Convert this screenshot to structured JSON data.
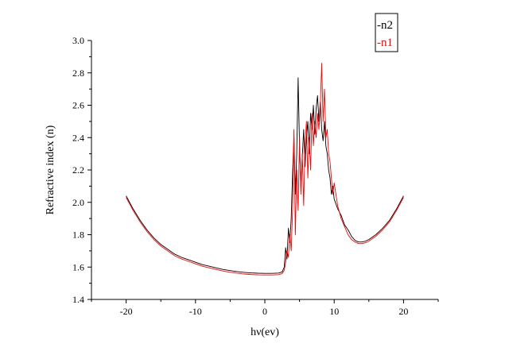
{
  "chart_data": {
    "type": "line",
    "title": "",
    "xlabel": "hν(ev)",
    "ylabel": "Refractive index (n)",
    "xlim": [
      -25,
      25
    ],
    "ylim": [
      1.4,
      3.0
    ],
    "x_ticks": [
      -20,
      -10,
      0,
      10,
      20
    ],
    "y_ticks": [
      1.4,
      1.6,
      1.8,
      2.0,
      2.2,
      2.4,
      2.6,
      2.8,
      3.0
    ],
    "x_tick_labels": [
      "-20",
      "-10",
      "0",
      "10",
      "20"
    ],
    "y_tick_labels": [
      "1.4",
      "1.6",
      "1.8",
      "2.0",
      "2.2",
      "2.4",
      "2.6",
      "2.8",
      "3.0"
    ],
    "grid": false,
    "legend_position": "top-right",
    "series": [
      {
        "name": "-n2",
        "color": "#000000",
        "points": [
          [
            -20,
            2.04
          ],
          [
            -19,
            1.96
          ],
          [
            -18,
            1.89
          ],
          [
            -17,
            1.83
          ],
          [
            -16,
            1.78
          ],
          [
            -15,
            1.74
          ],
          [
            -14,
            1.71
          ],
          [
            -13,
            1.68
          ],
          [
            -12,
            1.66
          ],
          [
            -11,
            1.645
          ],
          [
            -10,
            1.63
          ],
          [
            -9,
            1.615
          ],
          [
            -8,
            1.605
          ],
          [
            -7,
            1.595
          ],
          [
            -6,
            1.585
          ],
          [
            -5,
            1.578
          ],
          [
            -4,
            1.572
          ],
          [
            -3,
            1.567
          ],
          [
            -2,
            1.564
          ],
          [
            -1,
            1.562
          ],
          [
            0,
            1.561
          ],
          [
            1,
            1.561
          ],
          [
            2,
            1.563
          ],
          [
            2.5,
            1.57
          ],
          [
            2.8,
            1.6
          ],
          [
            3.0,
            1.72
          ],
          [
            3.2,
            1.65
          ],
          [
            3.4,
            1.84
          ],
          [
            3.6,
            1.75
          ],
          [
            3.8,
            1.9
          ],
          [
            4.0,
            2.18
          ],
          [
            4.2,
            2.4
          ],
          [
            4.4,
            2.05
          ],
          [
            4.6,
            2.3
          ],
          [
            4.8,
            2.77
          ],
          [
            5.0,
            2.35
          ],
          [
            5.2,
            2.1
          ],
          [
            5.4,
            2.28
          ],
          [
            5.6,
            2.45
          ],
          [
            5.8,
            2.22
          ],
          [
            6.0,
            2.4
          ],
          [
            6.2,
            2.5
          ],
          [
            6.4,
            2.3
          ],
          [
            6.6,
            2.55
          ],
          [
            6.8,
            2.45
          ],
          [
            7.0,
            2.6
          ],
          [
            7.2,
            2.42
          ],
          [
            7.4,
            2.58
          ],
          [
            7.6,
            2.66
          ],
          [
            7.8,
            2.5
          ],
          [
            8.0,
            2.62
          ],
          [
            8.2,
            2.45
          ],
          [
            8.4,
            2.38
          ],
          [
            8.6,
            2.5
          ],
          [
            8.8,
            2.35
          ],
          [
            9.0,
            2.3
          ],
          [
            9.2,
            2.2
          ],
          [
            9.4,
            2.15
          ],
          [
            9.6,
            2.05
          ],
          [
            9.8,
            2.1
          ],
          [
            10.0,
            2.02
          ],
          [
            10.5,
            1.96
          ],
          [
            11.0,
            1.92
          ],
          [
            11.5,
            1.86
          ],
          [
            12.0,
            1.83
          ],
          [
            12.5,
            1.79
          ],
          [
            13.0,
            1.765
          ],
          [
            13.5,
            1.755
          ],
          [
            14.0,
            1.755
          ],
          [
            14.5,
            1.76
          ],
          [
            15.0,
            1.77
          ],
          [
            16,
            1.8
          ],
          [
            17,
            1.84
          ],
          [
            18,
            1.89
          ],
          [
            19,
            1.96
          ],
          [
            20,
            2.04
          ]
        ]
      },
      {
        "name": "-n1",
        "color": "#ff0000",
        "points": [
          [
            -20,
            2.03
          ],
          [
            -19,
            1.95
          ],
          [
            -18,
            1.88
          ],
          [
            -17,
            1.82
          ],
          [
            -16,
            1.77
          ],
          [
            -15,
            1.73
          ],
          [
            -14,
            1.7
          ],
          [
            -13,
            1.67
          ],
          [
            -12,
            1.65
          ],
          [
            -11,
            1.635
          ],
          [
            -10,
            1.62
          ],
          [
            -9,
            1.605
          ],
          [
            -8,
            1.595
          ],
          [
            -7,
            1.585
          ],
          [
            -6,
            1.575
          ],
          [
            -5,
            1.568
          ],
          [
            -4,
            1.562
          ],
          [
            -3,
            1.557
          ],
          [
            -2,
            1.554
          ],
          [
            -1,
            1.552
          ],
          [
            0,
            1.551
          ],
          [
            1,
            1.551
          ],
          [
            2,
            1.553
          ],
          [
            2.5,
            1.56
          ],
          [
            2.8,
            1.58
          ],
          [
            3.0,
            1.63
          ],
          [
            3.2,
            1.7
          ],
          [
            3.4,
            1.66
          ],
          [
            3.6,
            1.8
          ],
          [
            3.8,
            1.7
          ],
          [
            4.0,
            1.95
          ],
          [
            4.2,
            2.45
          ],
          [
            4.4,
            1.8
          ],
          [
            4.6,
            2.2
          ],
          [
            4.8,
            1.95
          ],
          [
            5.0,
            2.4
          ],
          [
            5.2,
            2.05
          ],
          [
            5.4,
            2.3
          ],
          [
            5.6,
            1.98
          ],
          [
            5.8,
            2.35
          ],
          [
            6.0,
            2.5
          ],
          [
            6.2,
            2.15
          ],
          [
            6.4,
            2.4
          ],
          [
            6.6,
            2.2
          ],
          [
            6.8,
            2.55
          ],
          [
            7.0,
            2.35
          ],
          [
            7.2,
            2.5
          ],
          [
            7.4,
            2.4
          ],
          [
            7.6,
            2.55
          ],
          [
            7.8,
            2.45
          ],
          [
            8.0,
            2.6
          ],
          [
            8.2,
            2.86
          ],
          [
            8.4,
            2.5
          ],
          [
            8.6,
            2.7
          ],
          [
            8.8,
            2.4
          ],
          [
            9.0,
            2.45
          ],
          [
            9.2,
            2.3
          ],
          [
            9.4,
            2.25
          ],
          [
            9.6,
            2.15
          ],
          [
            9.8,
            2.05
          ],
          [
            10.0,
            2.12
          ],
          [
            10.5,
            1.98
          ],
          [
            11.0,
            1.9
          ],
          [
            11.5,
            1.85
          ],
          [
            12.0,
            1.8
          ],
          [
            12.5,
            1.77
          ],
          [
            13.0,
            1.755
          ],
          [
            13.5,
            1.745
          ],
          [
            14.0,
            1.745
          ],
          [
            14.5,
            1.75
          ],
          [
            15.0,
            1.76
          ],
          [
            16,
            1.79
          ],
          [
            17,
            1.83
          ],
          [
            18,
            1.88
          ],
          [
            19,
            1.95
          ],
          [
            20,
            2.03
          ]
        ]
      }
    ]
  }
}
